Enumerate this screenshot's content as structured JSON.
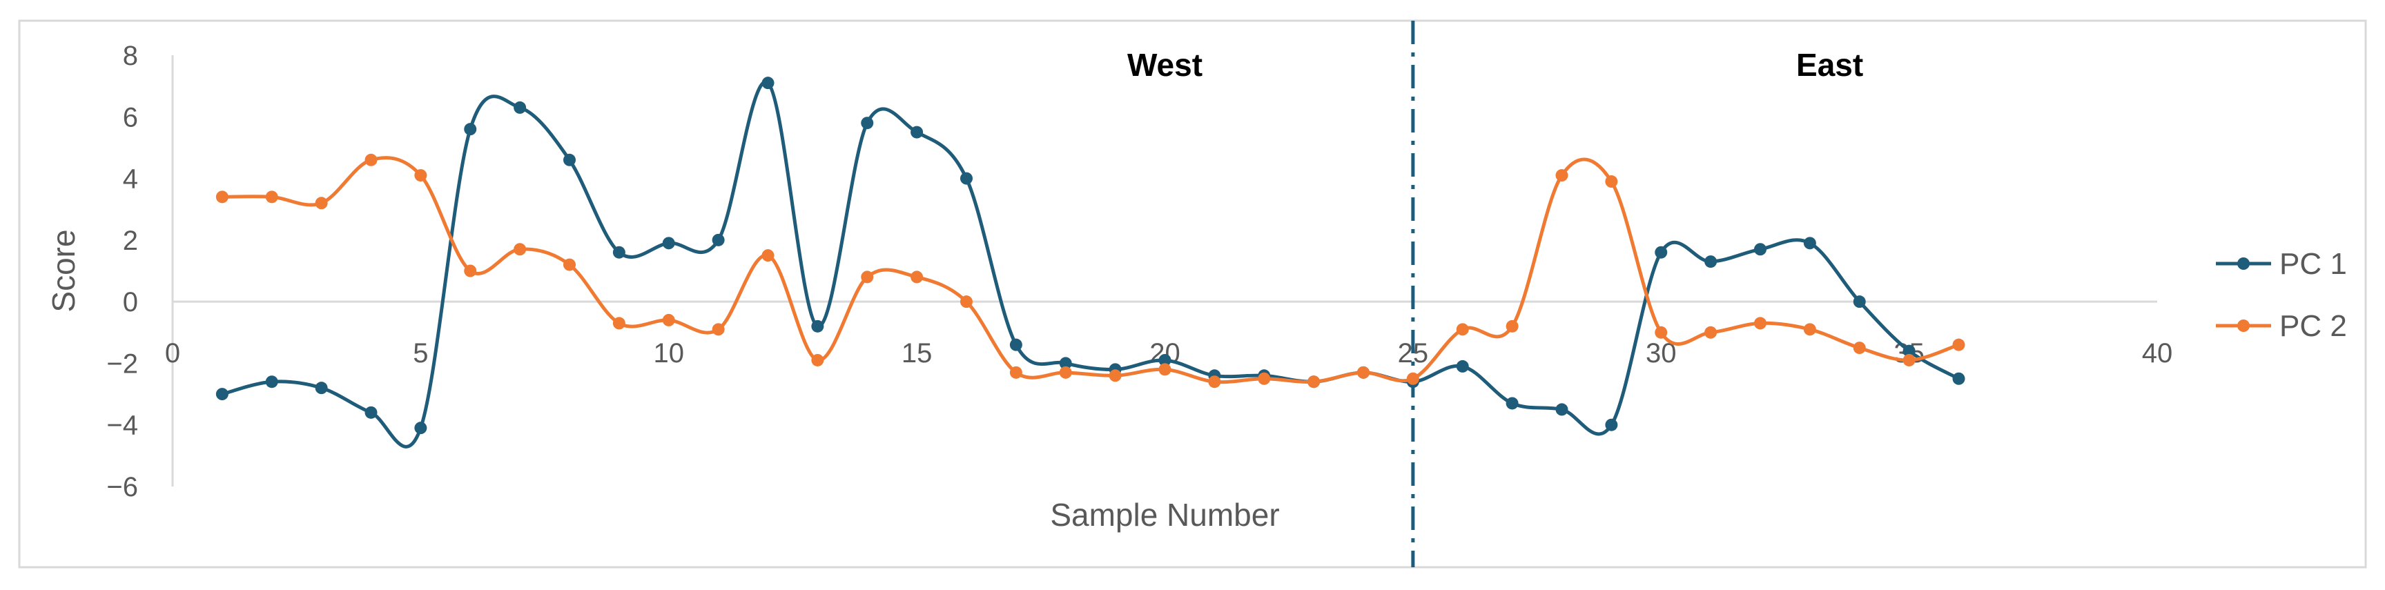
{
  "chart_data": {
    "type": "line",
    "title": "",
    "xlabel": "Sample Number",
    "ylabel": "Score",
    "xlim": [
      0,
      40
    ],
    "ylim": [
      -6,
      8
    ],
    "x_ticks": [
      0,
      5,
      10,
      15,
      20,
      25,
      30,
      35,
      40
    ],
    "y_ticks": [
      8,
      6,
      4,
      2,
      0,
      -2,
      -4,
      -6
    ],
    "y_tick_labels": [
      "8",
      "6",
      "4",
      "2",
      "0",
      "−2",
      "−4",
      "−6"
    ],
    "grid": false,
    "smooth": true,
    "legend_position": "right",
    "divider": {
      "x": 25,
      "style": "dash-dot",
      "color": "#1F5C7A"
    },
    "region_labels": [
      {
        "text": "West",
        "x": 20,
        "y": 7.6
      },
      {
        "text": "East",
        "x": 33.4,
        "y": 7.6
      }
    ],
    "x": [
      1,
      2,
      3,
      4,
      5,
      6,
      7,
      8,
      9,
      10,
      11,
      12,
      13,
      14,
      15,
      16,
      17,
      18,
      19,
      20,
      21,
      22,
      23,
      24,
      25,
      26,
      27,
      28,
      29,
      30,
      31,
      32,
      33,
      34,
      35,
      36
    ],
    "series": [
      {
        "name": "PC 1",
        "color": "#1F5C7A",
        "values": [
          -3.0,
          -2.6,
          -2.8,
          -3.6,
          -4.1,
          5.6,
          6.3,
          4.6,
          1.6,
          1.9,
          2.0,
          7.1,
          -0.8,
          5.8,
          5.5,
          4.0,
          -1.4,
          -2.0,
          -2.2,
          -1.9,
          -2.4,
          -2.4,
          -2.6,
          -2.3,
          -2.6,
          -2.1,
          -3.3,
          -3.5,
          -4.0,
          1.6,
          1.3,
          1.7,
          1.9,
          0.0,
          -1.6,
          -2.5
        ]
      },
      {
        "name": "PC 2",
        "color": "#F07A32",
        "values": [
          3.4,
          3.4,
          3.2,
          4.6,
          4.1,
          1.0,
          1.7,
          1.2,
          -0.7,
          -0.6,
          -0.9,
          1.5,
          -1.9,
          0.8,
          0.8,
          0.0,
          -2.3,
          -2.3,
          -2.4,
          -2.2,
          -2.6,
          -2.5,
          -2.6,
          -2.3,
          -2.5,
          -0.9,
          -0.8,
          4.1,
          3.9,
          -1.0,
          -1.0,
          -0.7,
          -0.9,
          -1.5,
          -1.9,
          -1.4
        ]
      }
    ]
  }
}
